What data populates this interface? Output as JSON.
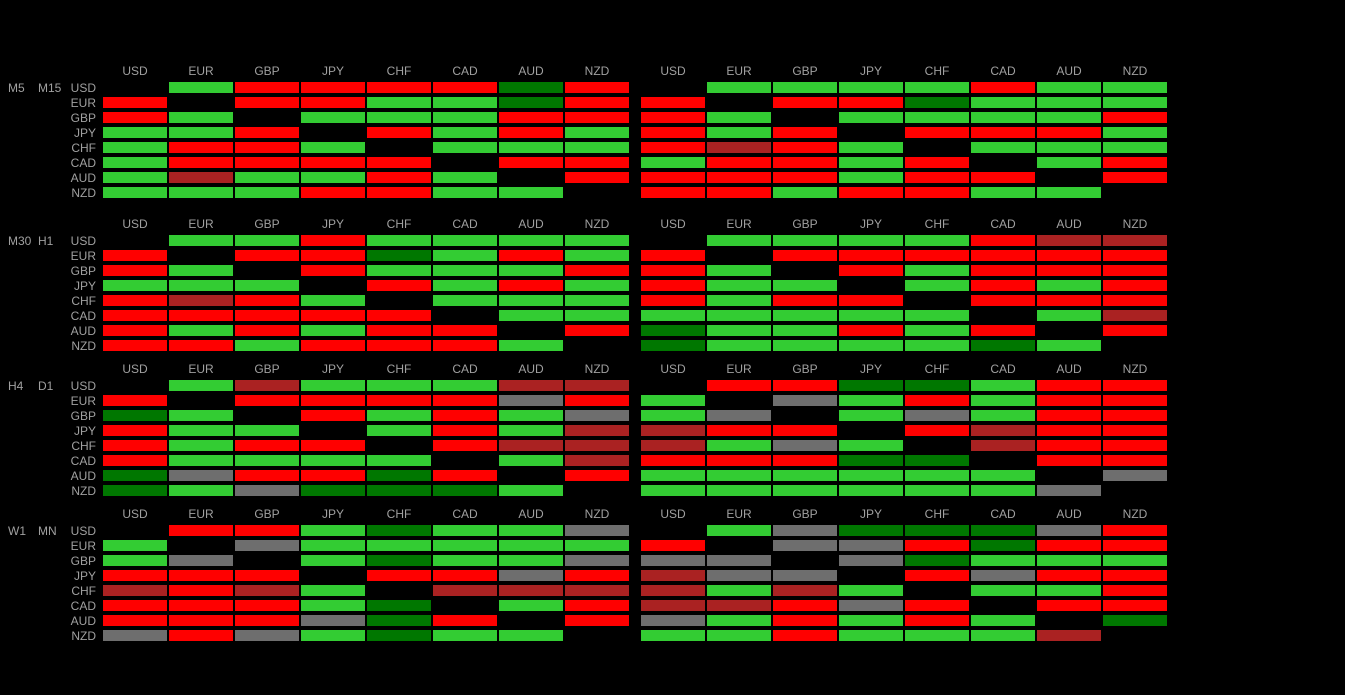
{
  "colors": {
    "R": "#ff0000",
    "G": "#33cc33",
    "D": "#007700",
    "M": "#aa2222",
    "Y": "#6e6e6e",
    "_": "#000000"
  },
  "currencies": [
    "USD",
    "EUR",
    "GBP",
    "JPY",
    "CHF",
    "CAD",
    "AUD",
    "NZD"
  ],
  "blocks": [
    {
      "tf_left": "M5",
      "tf_right": "M15",
      "left": [
        "_GRRRRDR",
        "R_RRGGDR",
        "RG_GGGRR",
        "GGR_RGRG",
        "GRRG_GGG",
        "GRRRR_RR",
        "GMGGRG_R",
        "GGGRRGG_"
      ],
      "right": [
        "_GGGGRGG",
        "R_RRDGGG",
        "RG_GGGGR",
        "RGR_RRRG",
        "RMRG_GGG",
        "GRRGR_GR",
        "RRRGRR_R",
        "RRGRRGG_"
      ]
    },
    {
      "tf_left": "M30",
      "tf_right": "H1",
      "left": [
        "_GGRGGGG",
        "R_RRDGRG",
        "RG_RGGGR",
        "GGG_RGRG",
        "RMRG_GGG",
        "RRRRR_GG",
        "RGRGRR_R",
        "RRGRRRG_"
      ],
      "right": [
        "_GGGGRMM",
        "R_RRRRRR",
        "RG_RGRRR",
        "RGG_GRGR",
        "RGRR_RRR",
        "GGGGG_GM",
        "DGGRGR_R",
        "DGGGGDG_"
      ]
    },
    {
      "tf_left": "H4",
      "tf_right": "D1",
      "left": [
        "_GMGGGMM",
        "R_RRRRYR",
        "DG_RGRGY",
        "RGG_GRGM",
        "RGRR_RMM",
        "RGGGG_GM",
        "DYRRDR_R",
        "DGYDDDG_"
      ],
      "right": [
        "_RRDDGRR",
        "G_YGRGRR",
        "GY_GYGRR",
        "MRR_RMRR",
        "MGYG_MRR",
        "RRRDD_RR",
        "GGGGGG_Y",
        "GGGGGGY_"
      ]
    },
    {
      "tf_left": "W1",
      "tf_right": "MN",
      "left": [
        "_RRGDGGY",
        "G_YGGGGG",
        "GY_GDGGY",
        "RRR_RRYR",
        "MRMG_MMM",
        "RRRGD_GR",
        "RRRYDR_R",
        "YRYGDGG_"
      ],
      "right": [
        "_GYDDDYR",
        "R_YYRDRR",
        "YY_YDGGG",
        "MYY_RYRR",
        "MGMG_GGR",
        "MMRYR_RR",
        "YGRGRG_D",
        "GGRGGGM_"
      ]
    }
  ]
}
